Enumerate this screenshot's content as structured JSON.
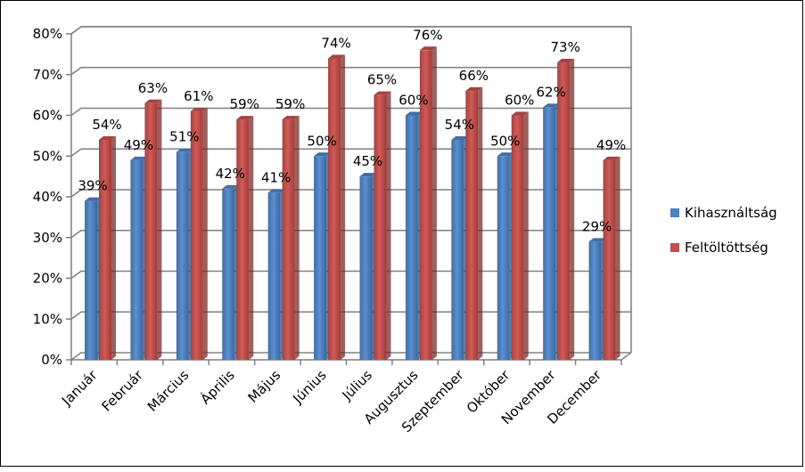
{
  "chart_data": {
    "type": "bar",
    "title": "",
    "xlabel": "",
    "ylabel": "",
    "ylim": [
      0,
      80
    ],
    "ytick_step": 10,
    "ytick_suffix": "%",
    "data_label_suffix": "%",
    "grid": true,
    "legend_position": "right",
    "categories": [
      "Január",
      "Február",
      "Március",
      "Április",
      "Május",
      "Június",
      "Július",
      "Augusztus",
      "Szeptember",
      "Október",
      "November",
      "December"
    ],
    "series": [
      {
        "name": "Kihasználtság",
        "color": "#4F81BD",
        "values": [
          39,
          49,
          51,
          42,
          41,
          50,
          45,
          60,
          54,
          50,
          62,
          29
        ]
      },
      {
        "name": "Feltöltöttség",
        "color": "#C0504D",
        "values": [
          54,
          63,
          61,
          59,
          59,
          74,
          65,
          76,
          66,
          60,
          73,
          49
        ]
      }
    ]
  }
}
